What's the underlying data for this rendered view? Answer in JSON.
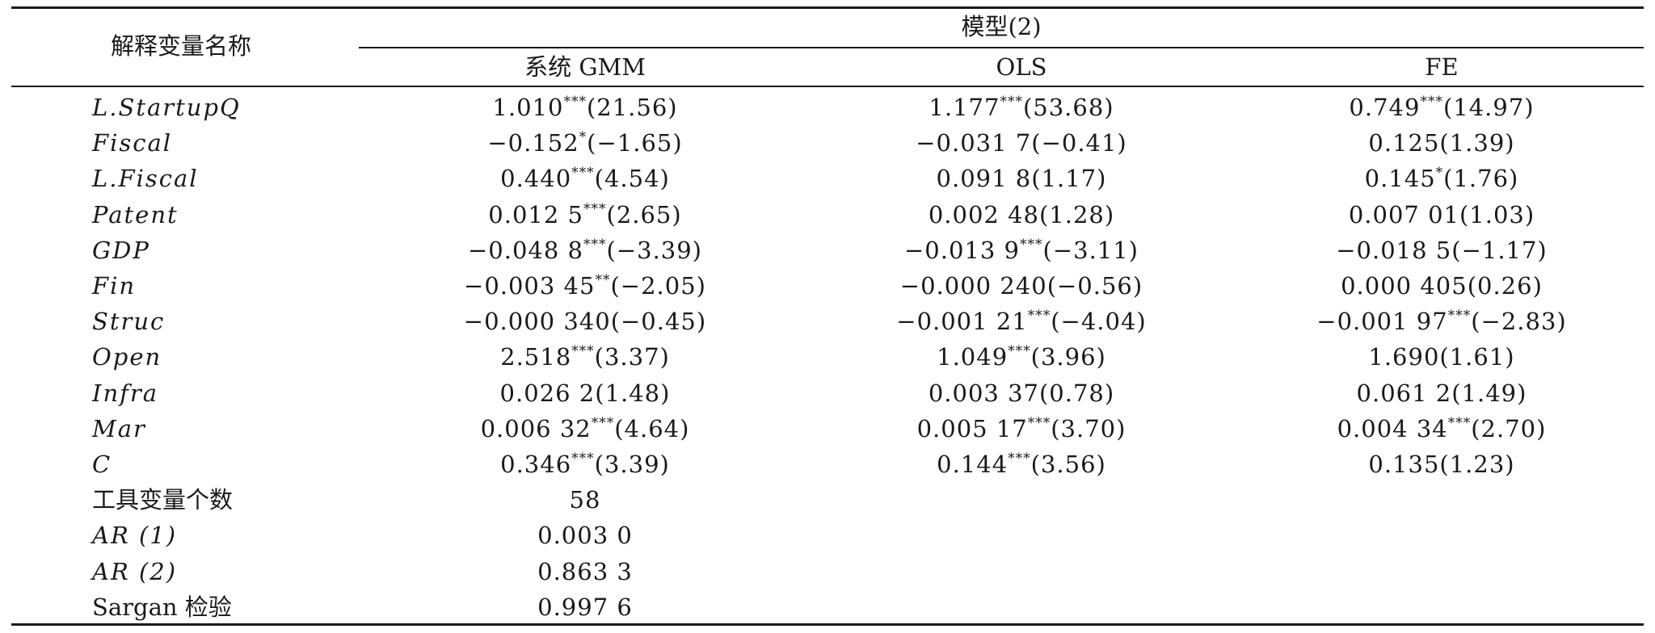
{
  "header": {
    "var_col": "解释变量名称",
    "model_group": "模型(2)",
    "columns": [
      "系统 GMM",
      "OLS",
      "FE"
    ]
  },
  "rows": [
    {
      "name": "L.StartupQ",
      "italic": true,
      "gmm": {
        "v": "1.010",
        "sig": "***",
        "t": "(21.56)"
      },
      "ols": {
        "v": "1.177",
        "sig": "***",
        "t": "(53.68)"
      },
      "fe": {
        "v": "0.749",
        "sig": "***",
        "t": "(14.97)"
      }
    },
    {
      "name": "Fiscal",
      "italic": true,
      "gmm": {
        "v": "−0.152",
        "sig": "*",
        "t": "(−1.65)"
      },
      "ols": {
        "v": "−0.031 7",
        "sig": "",
        "t": "(−0.41)"
      },
      "fe": {
        "v": "0.125",
        "sig": "",
        "t": "(1.39)"
      }
    },
    {
      "name": "L.Fiscal",
      "italic": true,
      "gmm": {
        "v": "0.440",
        "sig": "***",
        "t": "(4.54)"
      },
      "ols": {
        "v": "0.091 8",
        "sig": "",
        "t": "(1.17)"
      },
      "fe": {
        "v": "0.145",
        "sig": "*",
        "t": "(1.76)"
      }
    },
    {
      "name": "Patent",
      "italic": true,
      "gmm": {
        "v": "0.012 5",
        "sig": "***",
        "t": "(2.65)"
      },
      "ols": {
        "v": "0.002 48",
        "sig": "",
        "t": "(1.28)"
      },
      "fe": {
        "v": "0.007 01",
        "sig": "",
        "t": "(1.03)"
      }
    },
    {
      "name": "GDP",
      "italic": true,
      "gmm": {
        "v": "−0.048 8",
        "sig": "***",
        "t": "(−3.39)"
      },
      "ols": {
        "v": "−0.013 9",
        "sig": "***",
        "t": "(−3.11)"
      },
      "fe": {
        "v": "−0.018 5",
        "sig": "",
        "t": "(−1.17)"
      }
    },
    {
      "name": "Fin",
      "italic": true,
      "gmm": {
        "v": "−0.003 45",
        "sig": "**",
        "t": "(−2.05)"
      },
      "ols": {
        "v": "−0.000 240",
        "sig": "",
        "t": "(−0.56)"
      },
      "fe": {
        "v": "0.000 405",
        "sig": "",
        "t": "(0.26)"
      }
    },
    {
      "name": "Struc",
      "italic": true,
      "gmm": {
        "v": "−0.000 340",
        "sig": "",
        "t": "(−0.45)"
      },
      "ols": {
        "v": "−0.001 21",
        "sig": "***",
        "t": "(−4.04)"
      },
      "fe": {
        "v": "−0.001 97",
        "sig": "***",
        "t": "(−2.83)"
      }
    },
    {
      "name": "Open",
      "italic": true,
      "gmm": {
        "v": "2.518",
        "sig": "***",
        "t": "(3.37)"
      },
      "ols": {
        "v": "1.049",
        "sig": "***",
        "t": "(3.96)"
      },
      "fe": {
        "v": "1.690",
        "sig": "",
        "t": "(1.61)"
      }
    },
    {
      "name": "Infra",
      "italic": true,
      "gmm": {
        "v": "0.026 2",
        "sig": "",
        "t": "(1.48)"
      },
      "ols": {
        "v": "0.003 37",
        "sig": "",
        "t": "(0.78)"
      },
      "fe": {
        "v": "0.061 2",
        "sig": "",
        "t": "(1.49)"
      }
    },
    {
      "name": "Mar",
      "italic": true,
      "gmm": {
        "v": "0.006 32",
        "sig": "***",
        "t": "(4.64)"
      },
      "ols": {
        "v": "0.005 17",
        "sig": "***",
        "t": "(3.70)"
      },
      "fe": {
        "v": "0.004 34",
        "sig": "***",
        "t": "(2.70)"
      }
    },
    {
      "name": "C",
      "italic": true,
      "gmm": {
        "v": "0.346",
        "sig": "***",
        "t": "(3.39)"
      },
      "ols": {
        "v": "0.144",
        "sig": "***",
        "t": "(3.56)"
      },
      "fe": {
        "v": "0.135",
        "sig": "",
        "t": "(1.23)"
      }
    },
    {
      "name": "工具变量个数",
      "italic": false,
      "gmm": {
        "v": "58",
        "sig": "",
        "t": ""
      },
      "ols": {
        "v": "",
        "sig": "",
        "t": ""
      },
      "fe": {
        "v": "",
        "sig": "",
        "t": ""
      }
    },
    {
      "name": "AR (1)",
      "italic": true,
      "gmm": {
        "v": "0.003 0",
        "sig": "",
        "t": ""
      },
      "ols": {
        "v": "",
        "sig": "",
        "t": ""
      },
      "fe": {
        "v": "",
        "sig": "",
        "t": ""
      }
    },
    {
      "name": "AR (2)",
      "italic": true,
      "gmm": {
        "v": "0.863 3",
        "sig": "",
        "t": ""
      },
      "ols": {
        "v": "",
        "sig": "",
        "t": ""
      },
      "fe": {
        "v": "",
        "sig": "",
        "t": ""
      }
    },
    {
      "name": "Sargan 检验",
      "italic": false,
      "gmm": {
        "v": "0.997 6",
        "sig": "",
        "t": ""
      },
      "ols": {
        "v": "",
        "sig": "",
        "t": ""
      },
      "fe": {
        "v": "",
        "sig": "",
        "t": ""
      }
    }
  ]
}
